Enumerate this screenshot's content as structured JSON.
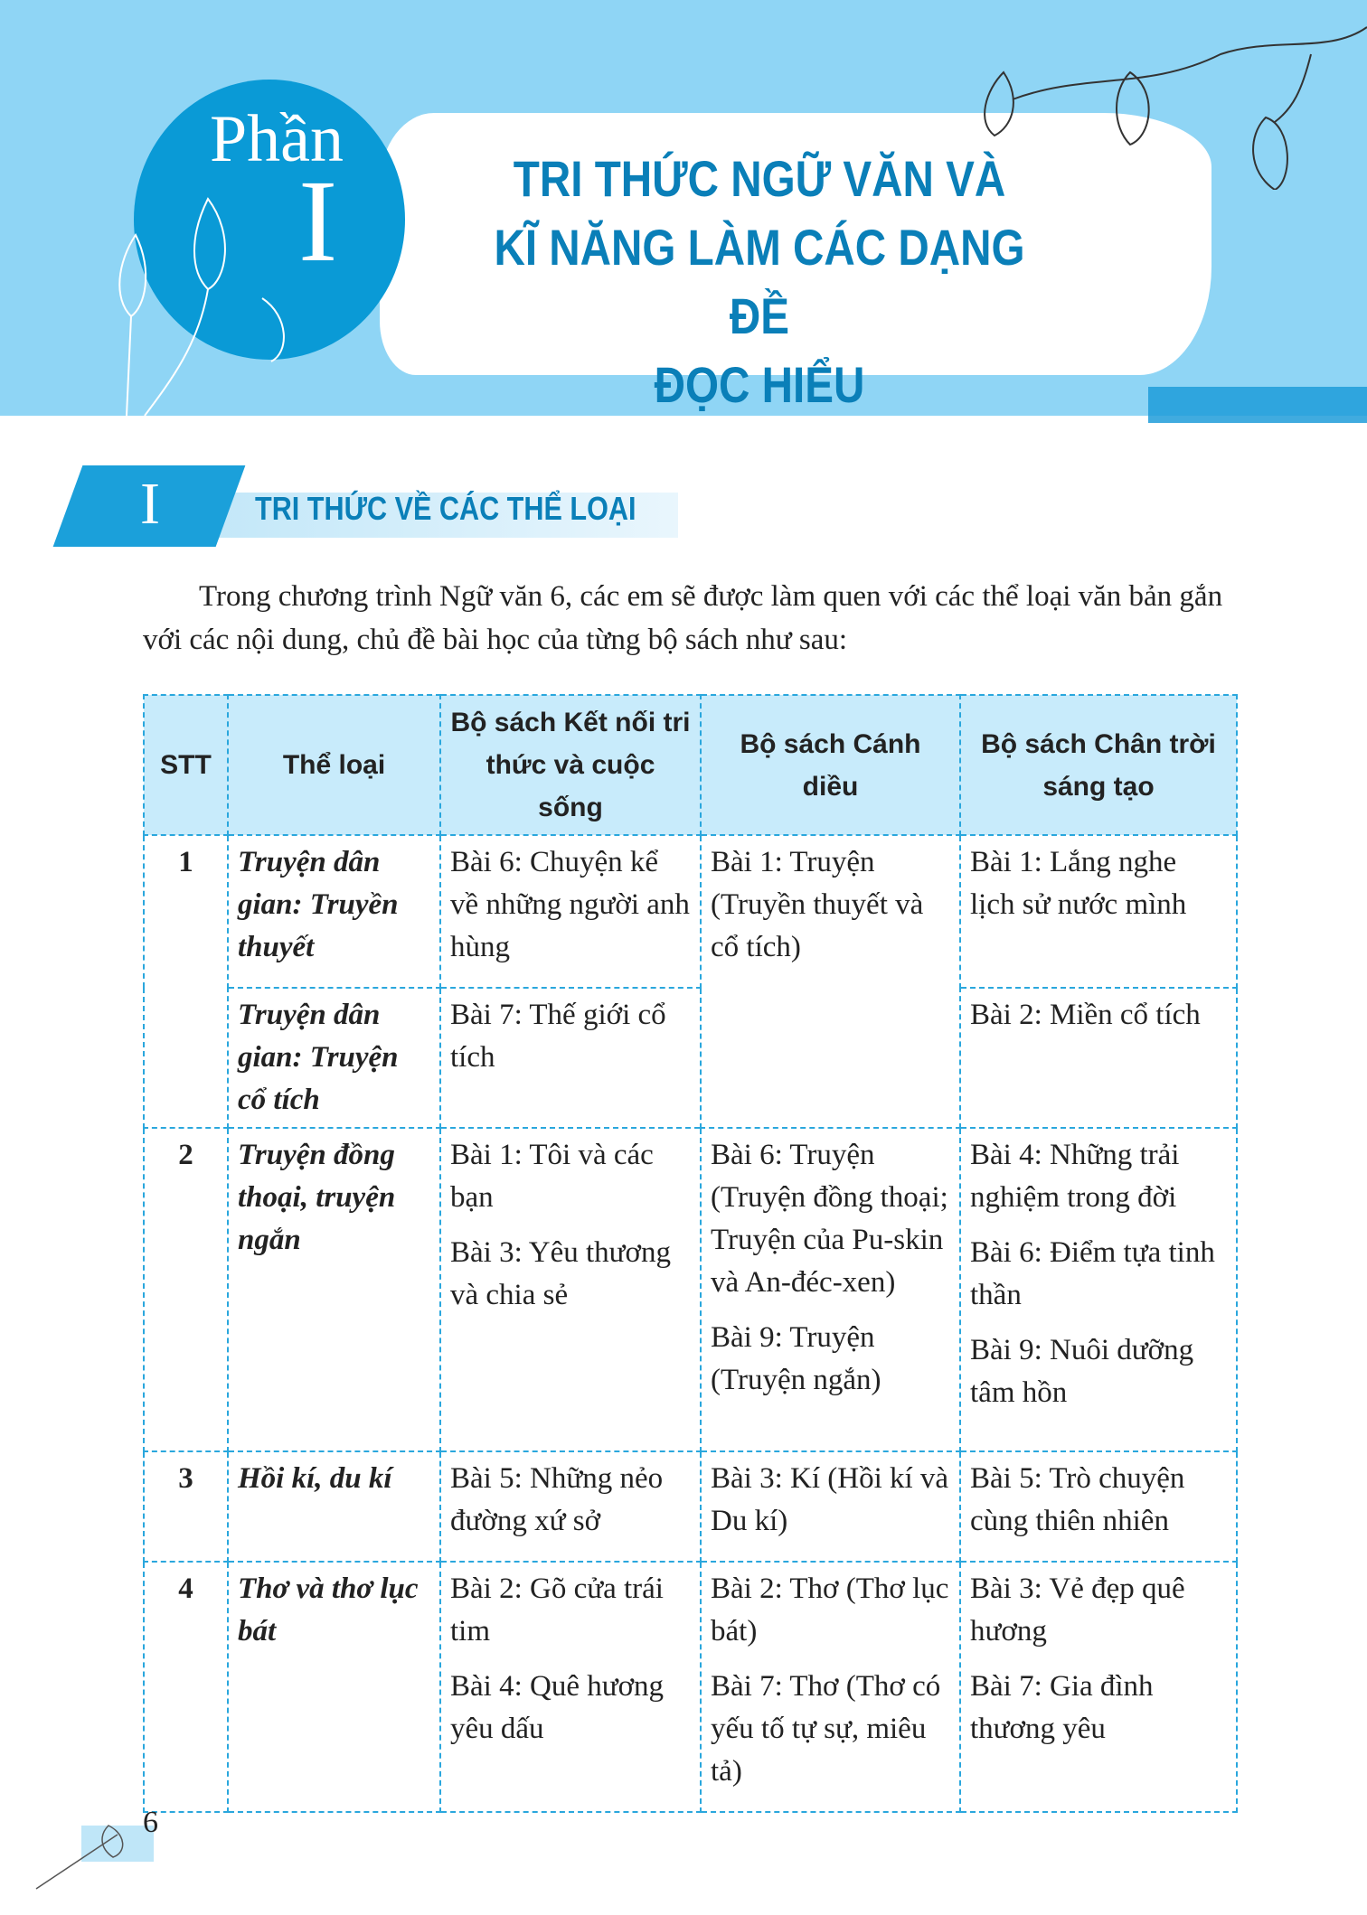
{
  "banner": {
    "part_word": "Phần",
    "part_number": "I",
    "title_lines": [
      "TRI THỨC NGỮ VĂN VÀ",
      "KĨ NĂNG LÀM CÁC DẠNG ĐỀ",
      "ĐỌC HIỂU"
    ]
  },
  "section": {
    "number": "I",
    "title": "TRI THỨC VỀ CÁC THỂ LOẠI"
  },
  "intro": "Trong chương trình Ngữ văn 6, các em sẽ được làm quen với các thể loại văn bản gắn với các nội dung, chủ đề bài học của từng bộ sách như sau:",
  "table": {
    "headers": [
      "STT",
      "Thể loại",
      "Bộ sách Kết nối tri thức và cuộc sống",
      "Bộ sách Cánh diều",
      "Bộ sách Chân trời sáng tạo"
    ],
    "rows": [
      {
        "stt": "1",
        "genre": "Truyện dân gian: Truyền thuyết",
        "kn": [
          "Bài 6: Chuyện kể về những người anh hùng"
        ],
        "cd": [
          "Bài 1: Truyện (Truyền thuyết và cổ tích)"
        ],
        "ct": [
          "Bài 1: Lắng nghe lịch sử nước mình"
        ]
      },
      {
        "genre": "Truyện dân gian: Truyện cổ tích",
        "kn": [
          "Bài 7: Thế giới cổ tích"
        ],
        "ct": [
          "Bài 2: Miền cổ tích"
        ]
      },
      {
        "stt": "2",
        "genre": "Truyện đồng thoại, truyện ngắn",
        "kn": [
          "Bài 1: Tôi và các bạn",
          "Bài 3: Yêu thương và chia sẻ"
        ],
        "cd": [
          "Bài 6: Truyện (Truyện đồng thoại; Truyện của Pu-skin và An-đéc-xen)",
          "Bài 9: Truyện (Truyện ngắn)"
        ],
        "ct": [
          "Bài 4: Những trải nghiệm trong đời",
          "Bài 6: Điểm tựa tinh thần",
          "Bài 9: Nuôi dưỡng tâm hồn"
        ]
      },
      {
        "stt": "3",
        "genre": "Hồi kí, du kí",
        "kn": [
          "Bài 5: Những nẻo đường xứ sở"
        ],
        "cd": [
          "Bài 3: Kí (Hồi kí và Du kí)"
        ],
        "ct": [
          "Bài 5: Trò chuyện cùng thiên nhiên"
        ]
      },
      {
        "stt": "4",
        "genre": "Thơ và thơ lục bát",
        "kn": [
          "Bài 2: Gõ cửa trái tim",
          "Bài 4: Quê hương yêu dấu"
        ],
        "cd": [
          "Bài 2: Thơ (Thơ lục bát)",
          "Bài 7: Thơ (Thơ có yếu tố tự sự, miêu tả)"
        ],
        "ct": [
          "Bài 3: Vẻ đẹp quê hương",
          "Bài 7: Gia đình thương yêu"
        ]
      }
    ]
  },
  "page_number": "6",
  "colors": {
    "banner": "#8fd5f5",
    "accent": "#0a9ad6",
    "title": "#0a7fb8",
    "header_bg": "#c8ebfb",
    "border": "#2aa7dd"
  }
}
